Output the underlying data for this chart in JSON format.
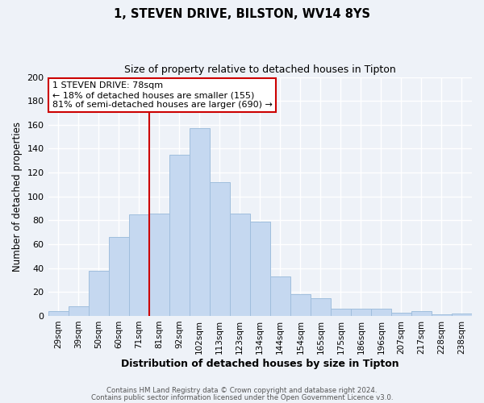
{
  "title1": "1, STEVEN DRIVE, BILSTON, WV14 8YS",
  "title2": "Size of property relative to detached houses in Tipton",
  "xlabel": "Distribution of detached houses by size in Tipton",
  "ylabel": "Number of detached properties",
  "bar_labels": [
    "29sqm",
    "39sqm",
    "50sqm",
    "60sqm",
    "71sqm",
    "81sqm",
    "92sqm",
    "102sqm",
    "113sqm",
    "123sqm",
    "134sqm",
    "144sqm",
    "154sqm",
    "165sqm",
    "175sqm",
    "186sqm",
    "196sqm",
    "207sqm",
    "217sqm",
    "228sqm",
    "238sqm"
  ],
  "bar_values": [
    4,
    8,
    38,
    66,
    85,
    86,
    135,
    157,
    112,
    86,
    79,
    33,
    18,
    15,
    6,
    6,
    6,
    3,
    4,
    1,
    2
  ],
  "bar_color": "#c5d8f0",
  "bar_edge_color": "#a0bedd",
  "vline_color": "#cc0000",
  "vline_bar_index": 5,
  "ylim": [
    0,
    200
  ],
  "yticks": [
    0,
    20,
    40,
    60,
    80,
    100,
    120,
    140,
    160,
    180,
    200
  ],
  "annotation_title": "1 STEVEN DRIVE: 78sqm",
  "annotation_line1": "← 18% of detached houses are smaller (155)",
  "annotation_line2": "81% of semi-detached houses are larger (690) →",
  "annotation_box_color": "#ffffff",
  "annotation_box_edge": "#cc0000",
  "footer1": "Contains HM Land Registry data © Crown copyright and database right 2024.",
  "footer2": "Contains public sector information licensed under the Open Government Licence v3.0.",
  "background_color": "#eef2f8",
  "grid_color": "#ffffff"
}
